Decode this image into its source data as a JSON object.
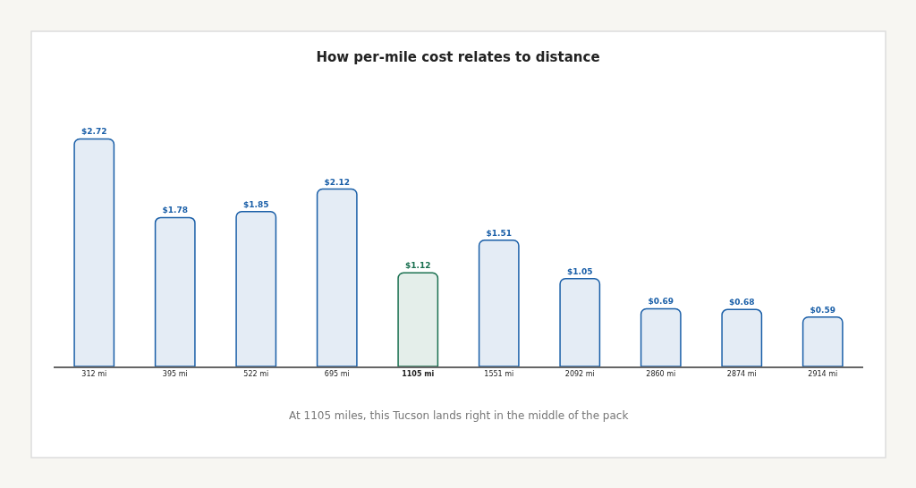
{
  "chart_data": {
    "type": "bar",
    "title": "How per-mile cost relates to distance",
    "categories": [
      "312 mi",
      "395 mi",
      "522 mi",
      "695 mi",
      "1105 mi",
      "1551 mi",
      "2092 mi",
      "2860 mi",
      "2874 mi",
      "2914 mi"
    ],
    "values": [
      2.72,
      1.78,
      1.85,
      2.12,
      1.12,
      1.51,
      1.05,
      0.69,
      0.68,
      0.59
    ],
    "value_labels": [
      "$2.72",
      "$1.78",
      "$1.85",
      "$2.12",
      "$1.12",
      "$1.51",
      "$1.05",
      "$0.69",
      "$0.68",
      "$0.59"
    ],
    "colors": [
      "#1a5fa8",
      "#1a5fa8",
      "#1a5fa8",
      "#1a5fa8",
      "#1a7050",
      "#1a5fa8",
      "#1a5fa8",
      "#1a5fa8",
      "#1a5fa8",
      "#1a5fa8"
    ],
    "tick_labels": "x",
    "annotations": [
      "At 1105 miles, this Tucson lands right in the middle of the pack"
    ]
  }
}
